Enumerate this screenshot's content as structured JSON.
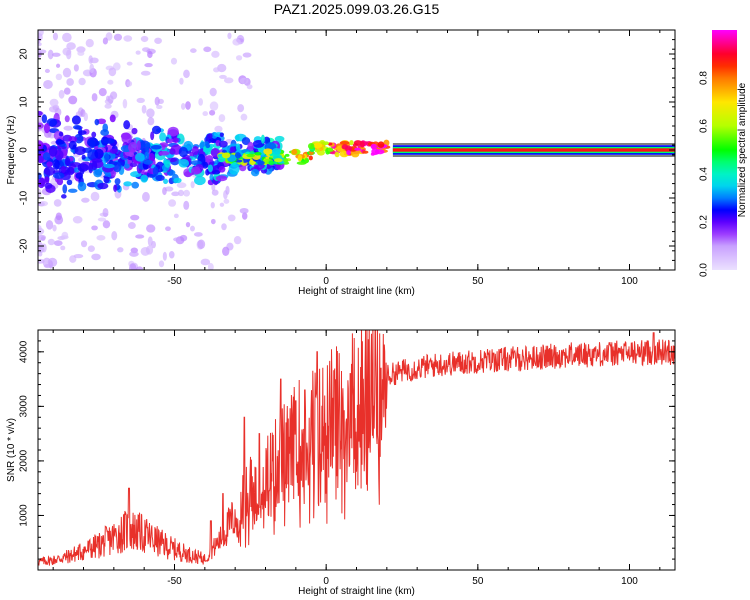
{
  "title": "PAZ1.2025.099.03.26.G15",
  "chart_data": [
    {
      "type": "heatmap",
      "xlabel": "Height of straight line (km)",
      "ylabel": "Frequency (Hz)",
      "xlim": [
        -95,
        115
      ],
      "ylim": [
        -25,
        25
      ],
      "xticks": [
        -50,
        0,
        50,
        100
      ],
      "yticks": [
        -20,
        -10,
        0,
        10,
        20
      ],
      "colorbar": {
        "label": "Normalized spectral amplitude",
        "range": [
          0,
          1
        ],
        "ticks": [
          0.0,
          0.2,
          0.4,
          0.6,
          0.8
        ],
        "colormap": "rainbow (white-magenta-blue-cyan-green-yellow-red-magenta)"
      },
      "signal": {
        "description_points": [
          {
            "x": -90,
            "y": -1.5,
            "amp": 0.2
          },
          {
            "x": -70,
            "y": -2,
            "amp": 0.3
          },
          {
            "x": -50,
            "y": -1,
            "amp": 0.35
          },
          {
            "x": -30,
            "y": -1,
            "amp": 0.4
          },
          {
            "x": -17,
            "y": -1.5,
            "amp": 0.6
          },
          {
            "x": -5,
            "y": 0.5,
            "amp": 0.8
          },
          {
            "x": 5,
            "y": 0,
            "amp": 0.9
          },
          {
            "x": 15,
            "y": 0.5,
            "amp": 0.9
          },
          {
            "x": 30,
            "y": 0,
            "amp": 1.0
          },
          {
            "x": 115,
            "y": 0,
            "amp": 1.0
          }
        ]
      }
    },
    {
      "type": "line",
      "xlabel": "Height of straight line (km)",
      "ylabel": "SNR (10 * v/v)",
      "xlim": [
        -95,
        115
      ],
      "ylim": [
        0,
        4400
      ],
      "xticks": [
        -50,
        0,
        50,
        100
      ],
      "yticks": [
        1000,
        2000,
        3000,
        4000
      ],
      "series": [
        {
          "color": "#e8302a",
          "x": [
            -95,
            -90,
            -85,
            -80,
            -75,
            -70,
            -65,
            -60,
            -55,
            -50,
            -45,
            -40,
            -35,
            -30,
            -27,
            -25,
            -22,
            -20,
            -17,
            -15,
            -12,
            -10,
            -7,
            -5,
            -2,
            0,
            3,
            5,
            8,
            10,
            13,
            15,
            18,
            20,
            25,
            30,
            35,
            40,
            45,
            50,
            55,
            60,
            65,
            70,
            75,
            80,
            85,
            90,
            95,
            100,
            105,
            110,
            115
          ],
          "values": [
            150,
            180,
            250,
            350,
            450,
            600,
            750,
            650,
            500,
            380,
            280,
            200,
            550,
            1000,
            1300,
            1500,
            1600,
            1700,
            1900,
            2100,
            2200,
            2400,
            2500,
            2600,
            2650,
            2800,
            2850,
            2950,
            3050,
            3150,
            3250,
            3350,
            3450,
            3550,
            3650,
            3700,
            3750,
            3780,
            3800,
            3830,
            3850,
            3870,
            3880,
            3900,
            3920,
            3940,
            3950,
            3960,
            3970,
            3980,
            3990,
            4000,
            4000
          ],
          "spikes": [
            {
              "x": -65,
              "value": 1500
            },
            {
              "x": -38,
              "value": 900
            },
            {
              "x": -34,
              "value": 1400
            },
            {
              "x": -27,
              "value": 2800
            },
            {
              "x": -22,
              "value": 2500
            },
            {
              "x": -15,
              "value": 3500
            },
            {
              "x": -10,
              "value": 3100
            },
            {
              "x": -7,
              "value": 3300
            },
            {
              "x": -3,
              "value": 4000
            },
            {
              "x": 8,
              "value": 3600
            },
            {
              "x": 18,
              "value": 3700
            },
            {
              "x": 108,
              "value": 4350
            }
          ]
        }
      ]
    }
  ]
}
